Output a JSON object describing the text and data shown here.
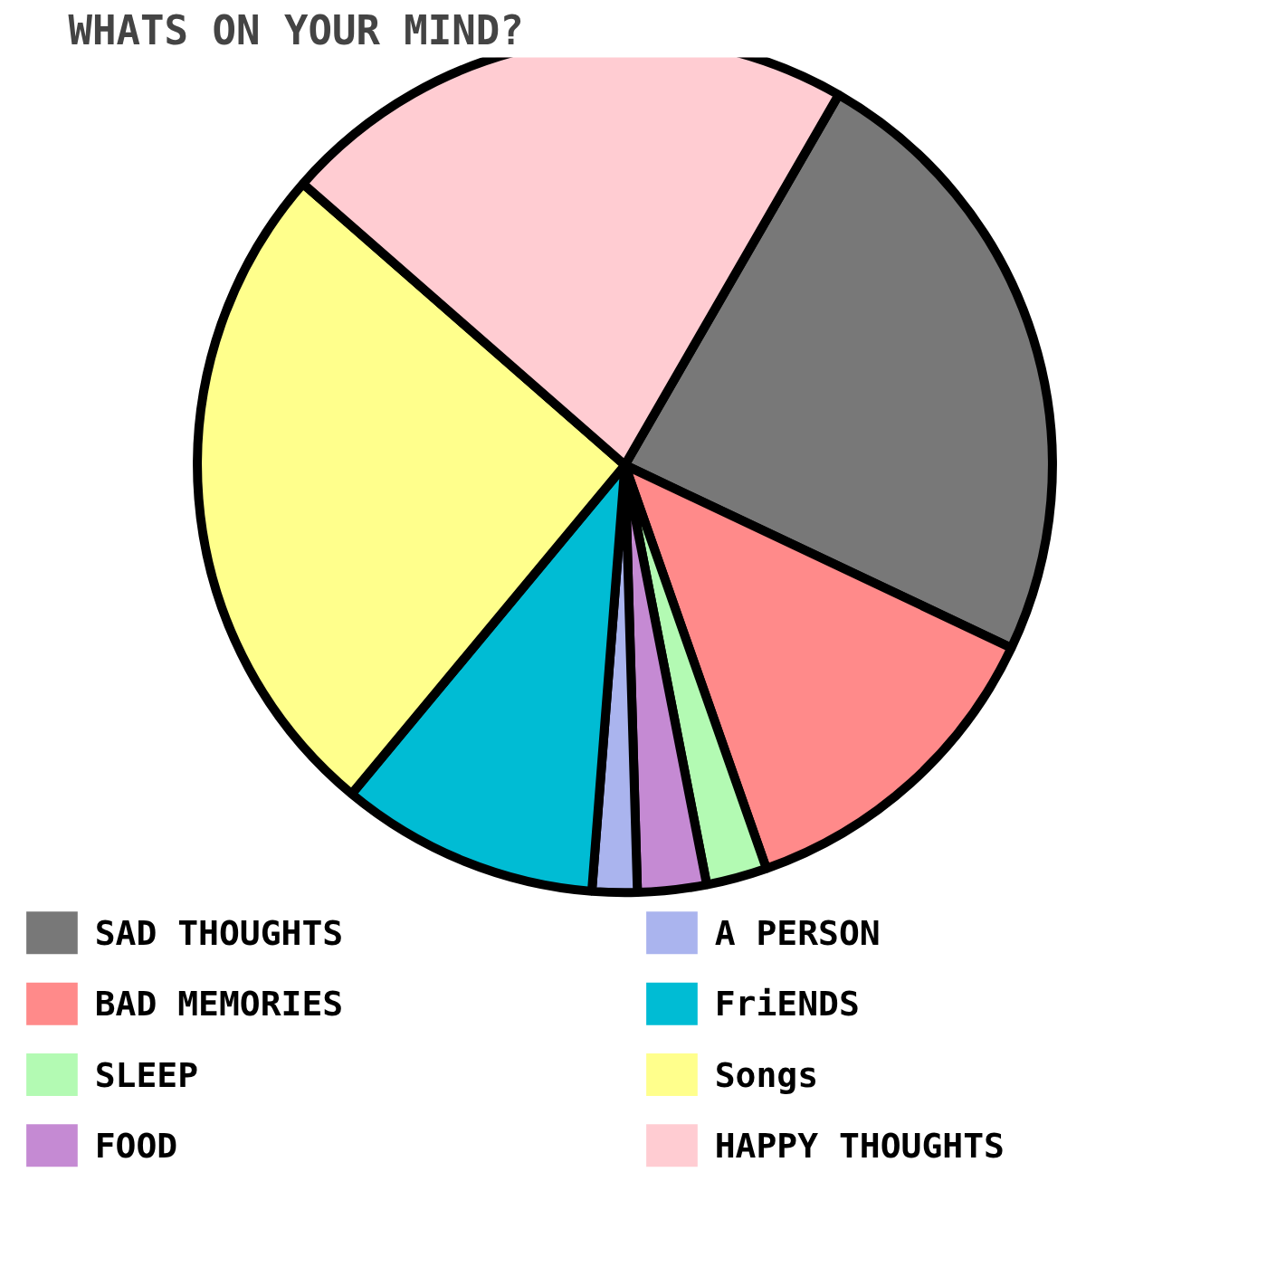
{
  "chart_data": {
    "type": "pie",
    "title": "WHATS ON YOUR MIND?",
    "categories": [
      "SAD THOUGHTS",
      "BAD MEMORIES",
      "SLEEP",
      "FOOD",
      "A PERSON",
      "FriENDS",
      "Songs",
      "HAPPY THOUGHTS"
    ],
    "values": [
      23.7,
      12.6,
      2.3,
      2.6,
      1.7,
      9.8,
      25.4,
      21.9
    ],
    "colors": [
      "#787878",
      "#ff8a8a",
      "#b3fab3",
      "#c58ad3",
      "#aab4ee",
      "#00bcd4",
      "#ffff8c",
      "#ffccd2"
    ],
    "legend": "bottom"
  }
}
